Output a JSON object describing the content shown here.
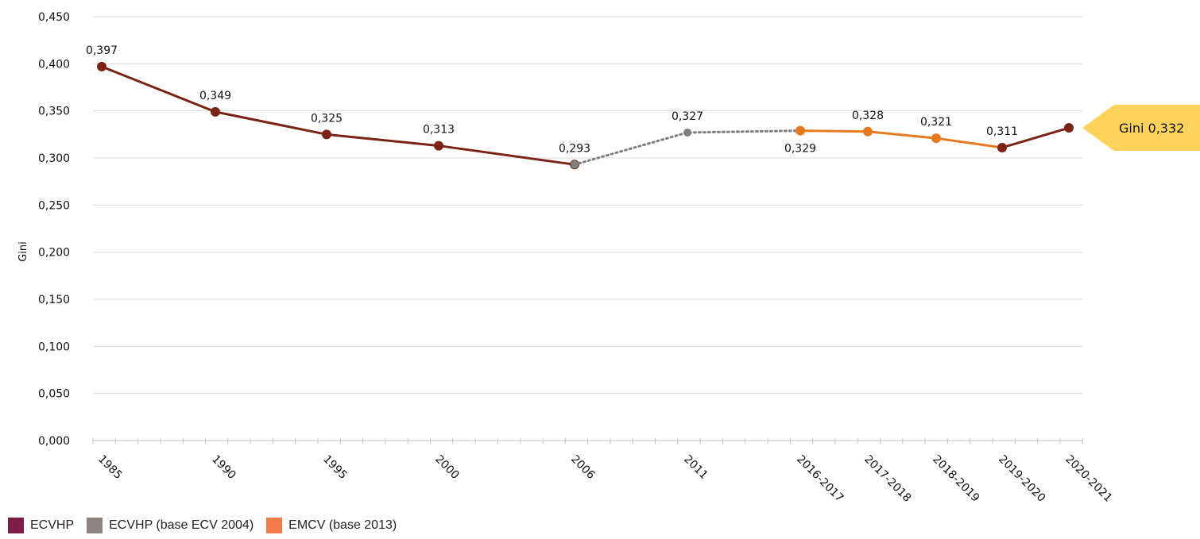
{
  "chart_data": {
    "type": "line",
    "ylabel": "Gini",
    "ylim": [
      0,
      0.45
    ],
    "y_ticks": [
      "0,000",
      "0,050",
      "0,100",
      "0,150",
      "0,200",
      "0,250",
      "0,300",
      "0,350",
      "0,400",
      "0,450"
    ],
    "categories": [
      "1985",
      "1990",
      "1995",
      "2000",
      "2006",
      "2011",
      "2016-2017",
      "2017-2018",
      "2018-2019",
      "2019-2020",
      "2020-2021"
    ],
    "grid": true,
    "series": [
      {
        "name": "ECVHP",
        "color": "#7b2416",
        "style": "solid",
        "points": [
          {
            "x": "1985",
            "y": 0.397,
            "label": "0,397"
          },
          {
            "x": "1990",
            "y": 0.349,
            "label": "0,349"
          },
          {
            "x": "1995",
            "y": 0.325,
            "label": "0,325"
          },
          {
            "x": "2000",
            "y": 0.313,
            "label": "0,313"
          },
          {
            "x": "2006",
            "y": 0.293,
            "label": "0,293"
          }
        ]
      },
      {
        "name": "ECVHP (base ECV 2004)",
        "color": "#7f7f7f",
        "style": "dotted",
        "points": [
          {
            "x": "2006",
            "y": 0.293,
            "label": ""
          },
          {
            "x": "2011",
            "y": 0.327,
            "label": "0,327"
          },
          {
            "x": "2016-2017",
            "y": 0.329,
            "label": "0,329"
          }
        ]
      },
      {
        "name": "EMCV (base 2013)",
        "color": "#e87a1e",
        "style": "solid",
        "points": [
          {
            "x": "2016-2017",
            "y": 0.329,
            "label": ""
          },
          {
            "x": "2017-2018",
            "y": 0.328,
            "label": "0,328"
          },
          {
            "x": "2018-2019",
            "y": 0.321,
            "label": "0,321"
          },
          {
            "x": "2019-2020",
            "y": 0.311,
            "label": "0,311"
          }
        ]
      },
      {
        "name": "",
        "color": "#7b2416",
        "style": "solid",
        "points": [
          {
            "x": "2019-2020",
            "y": 0.311,
            "label": ""
          },
          {
            "x": "2020-2021",
            "y": 0.332,
            "label": ""
          }
        ]
      }
    ],
    "callout": {
      "text": "Gini 0,332",
      "color": "#fcd25a"
    },
    "legend": {
      "placement": "bottom-left",
      "items": [
        {
          "label": "ECVHP",
          "color": "#7d1c45"
        },
        {
          "label": "ECVHP (base ECV 2004)",
          "color": "#8c8380"
        },
        {
          "label": "EMCV (base 2013)",
          "color": "#f47b49"
        }
      ]
    }
  }
}
